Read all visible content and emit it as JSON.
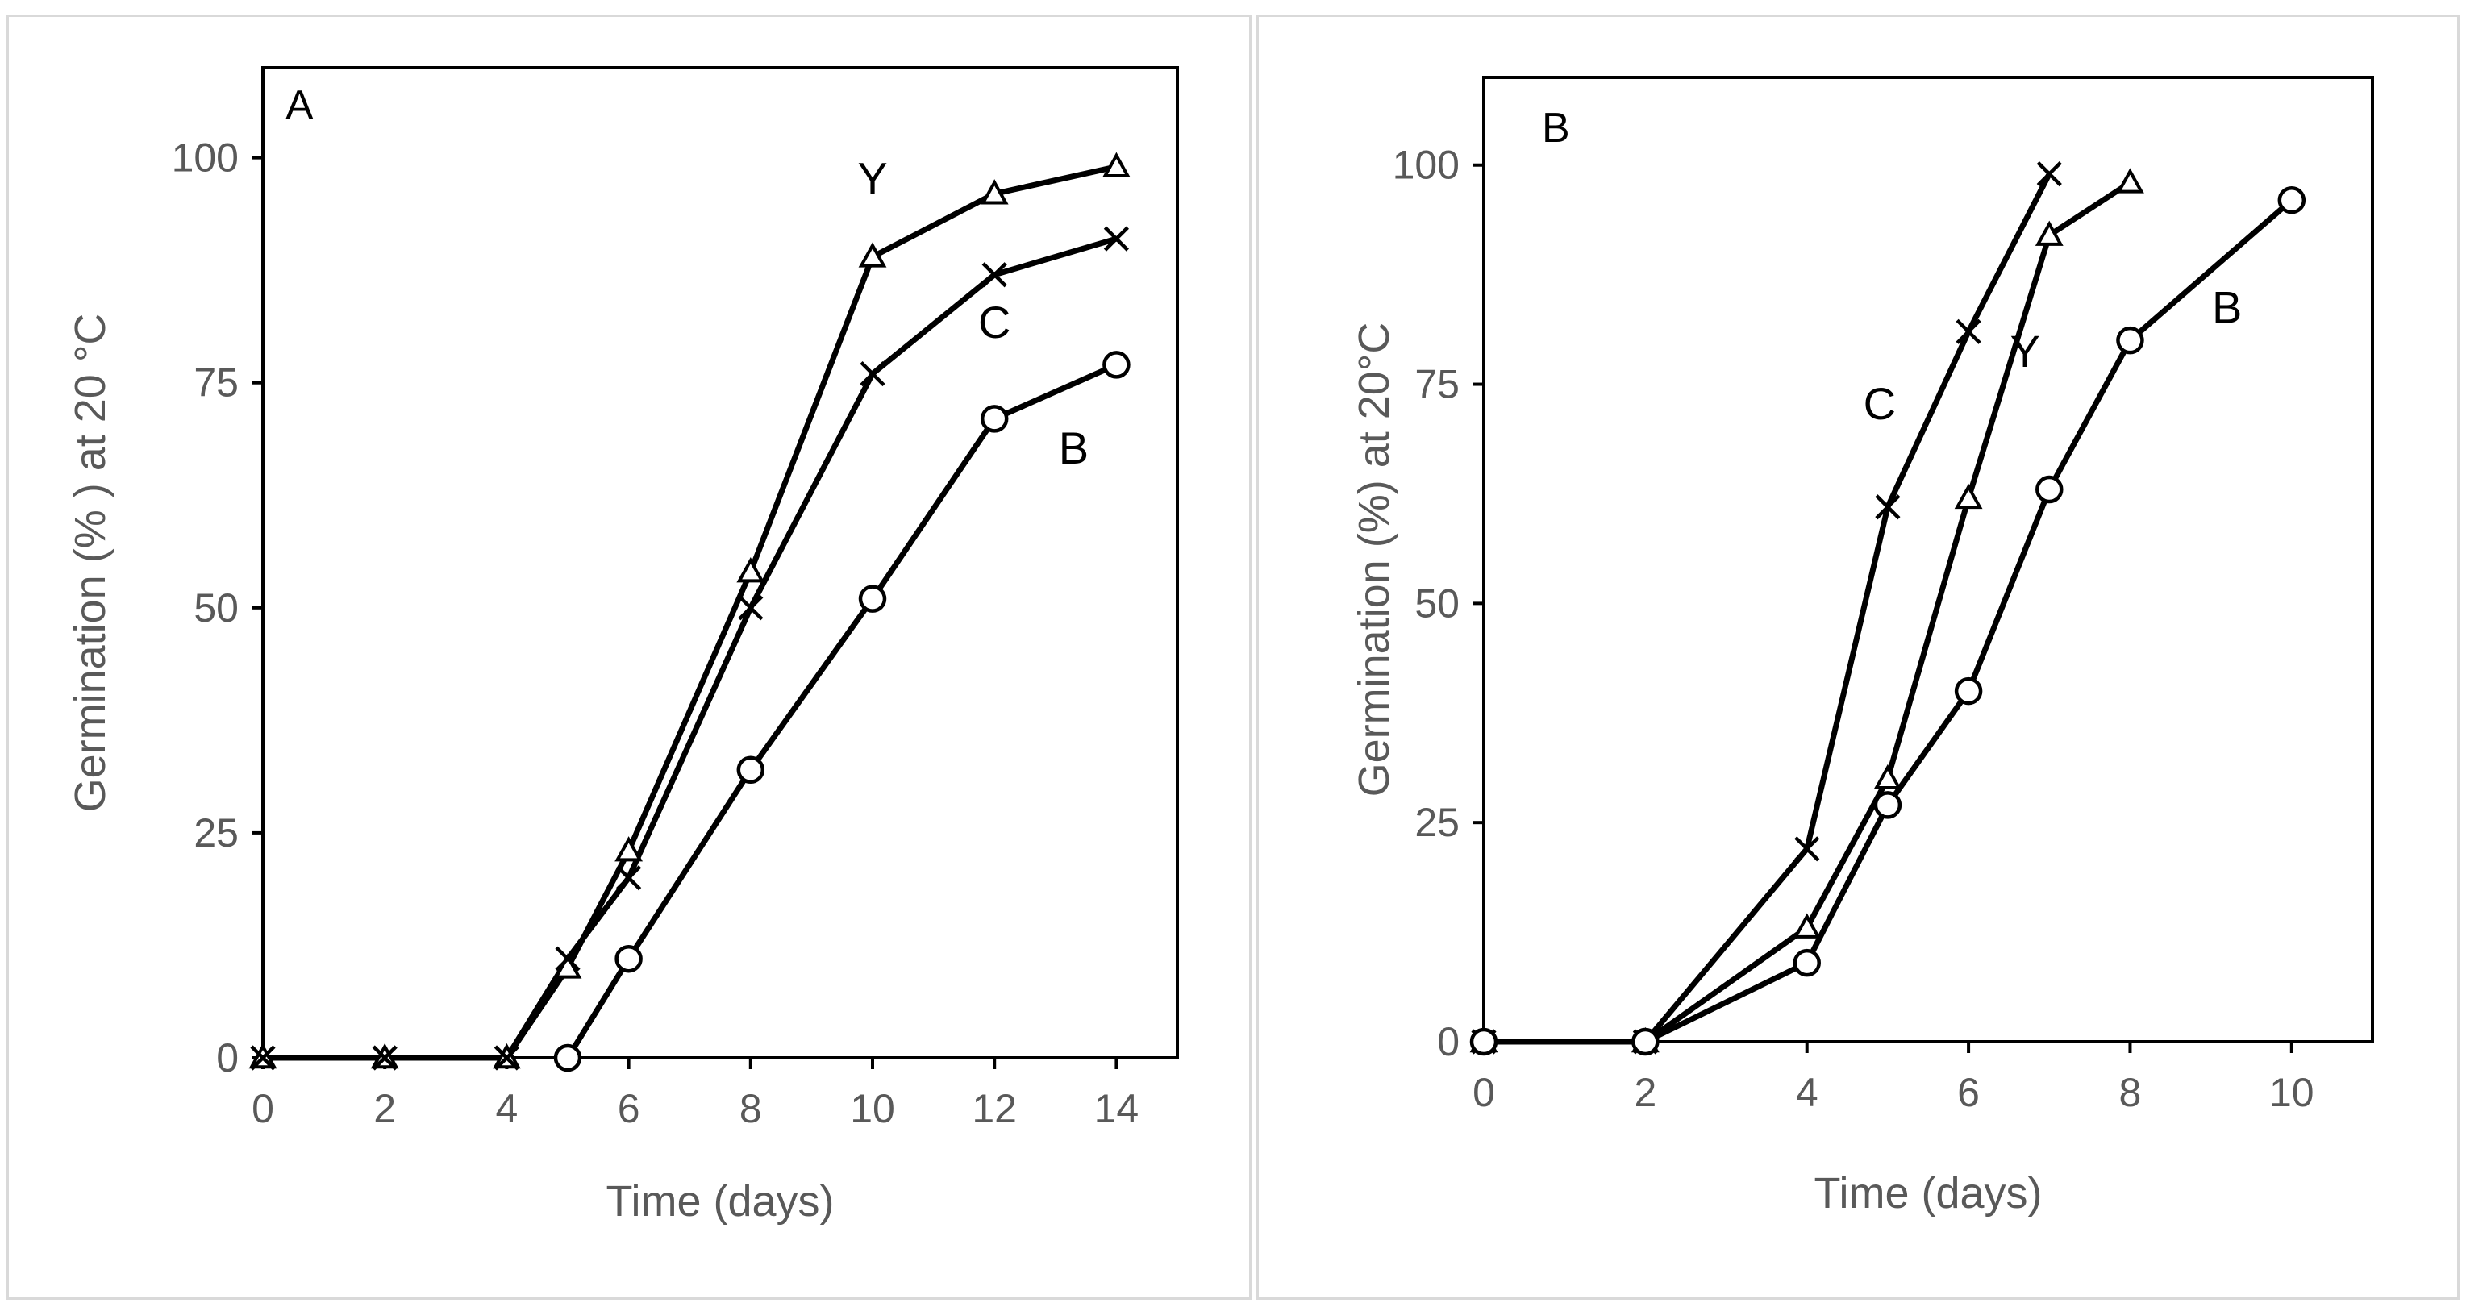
{
  "chart_data": [
    {
      "type": "line",
      "panel_label": "A",
      "xlabel": "Time (days)",
      "ylabel": "Germination (% ) at 20 °C",
      "xlim": [
        0,
        15
      ],
      "ylim": [
        0,
        110
      ],
      "x_ticks": [
        "0",
        "2",
        "4",
        "6",
        "8",
        "10",
        "12",
        "14"
      ],
      "y_ticks": [
        "0",
        "25",
        "50",
        "75",
        "100"
      ],
      "grid": false,
      "series": [
        {
          "name": "Y",
          "marker": "triangle",
          "x": [
            0,
            2,
            4,
            5,
            6,
            8,
            10,
            12,
            14
          ],
          "y": [
            0,
            0,
            0,
            10,
            23,
            54,
            89,
            96,
            99
          ],
          "label_at": [
            10,
            96
          ]
        },
        {
          "name": "C",
          "marker": "cross",
          "x": [
            0,
            2,
            4,
            5,
            6,
            8,
            10,
            12,
            14
          ],
          "y": [
            0,
            0,
            0,
            11,
            20,
            50,
            76,
            87,
            91
          ],
          "label_at": [
            12,
            80
          ]
        },
        {
          "name": "B",
          "marker": "circle",
          "x": [
            5,
            6,
            8,
            10,
            12,
            14
          ],
          "y": [
            0,
            11,
            32,
            51,
            71,
            77
          ],
          "label_at": [
            13.3,
            66
          ]
        }
      ]
    },
    {
      "type": "line",
      "panel_label": "B",
      "xlabel": "Time (days)",
      "ylabel": "Germination (%) at 20°C",
      "xlim": [
        0,
        11
      ],
      "ylim": [
        0,
        110
      ],
      "x_ticks": [
        "0",
        "2",
        "4",
        "6",
        "8",
        "10"
      ],
      "y_ticks": [
        "0",
        "25",
        "50",
        "75",
        "100"
      ],
      "grid": false,
      "series": [
        {
          "name": "C",
          "marker": "cross",
          "x": [
            0,
            2,
            4,
            5,
            6,
            7
          ],
          "y": [
            0,
            0,
            22,
            61,
            81,
            99
          ],
          "label_at": [
            4.9,
            71
          ]
        },
        {
          "name": "Y",
          "marker": "triangle",
          "x": [
            0,
            2,
            4,
            5,
            6,
            7,
            8
          ],
          "y": [
            0,
            0,
            13,
            30,
            62,
            92,
            98
          ],
          "label_at": [
            6.7,
            77
          ]
        },
        {
          "name": "B",
          "marker": "circle",
          "x": [
            0,
            2,
            4,
            5,
            6,
            7,
            8,
            10
          ],
          "y": [
            0,
            0,
            9,
            27,
            40,
            63,
            80,
            96
          ],
          "label_at": [
            9.2,
            82
          ]
        }
      ]
    }
  ]
}
